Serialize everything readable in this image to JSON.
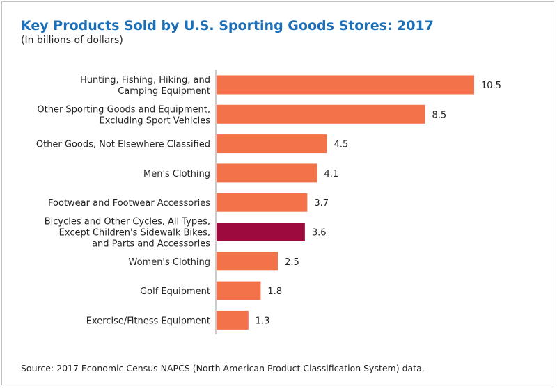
{
  "chart_data": {
    "type": "bar",
    "orientation": "horizontal",
    "title": "Key Products Sold by U.S. Sporting Goods Stores: 2017",
    "subtitle": "(In billions of dollars)",
    "source": "Source: 2017 Economic Census NAPCS (North American Product Classification System) data.",
    "categories": [
      [
        "Hunting, Fishing, Hiking, and",
        "Camping Equipment"
      ],
      [
        "Other Sporting Goods and Equipment,",
        "Excluding Sport Vehicles"
      ],
      [
        "Other Goods, Not Elsewhere Classified"
      ],
      [
        "Men's Clothing"
      ],
      [
        "Footwear and Footwear Accessories"
      ],
      [
        "Bicycles and Other Cycles, All Types,",
        "Except Children's Sidewalk Bikes,",
        "and Parts and Accessories"
      ],
      [
        "Women's Clothing"
      ],
      [
        "Golf Equipment"
      ],
      [
        "Exercise/Fitness Equipment"
      ]
    ],
    "values": [
      10.5,
      8.5,
      4.5,
      4.1,
      3.7,
      3.6,
      2.5,
      1.8,
      1.3
    ],
    "value_labels": [
      "10.5",
      "8.5",
      "4.5",
      "4.1",
      "3.7",
      "3.6",
      "2.5",
      "1.8",
      "1.3"
    ],
    "xlim": [
      0,
      10.5
    ],
    "grid": false,
    "colors": {
      "bar": "#f4724a",
      "highlight": "#9c0a3e",
      "axis": "#9a9a9a",
      "title": "#1b6fb8"
    },
    "highlight_index": 5
  }
}
